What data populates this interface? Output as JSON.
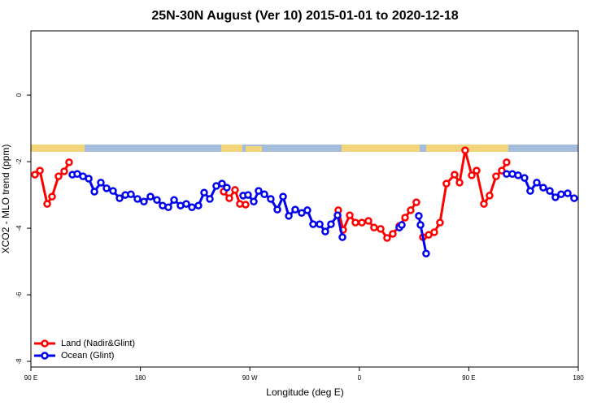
{
  "chart_data": {
    "type": "line",
    "title": "25N-30N August (Ver 10)   2015-01-01 to 2020-12-18",
    "xlabel": "Longitude (deg E)",
    "ylabel": "XCO2 - MLO trend (ppm)",
    "xlim": [
      90,
      540
    ],
    "ylim": [
      -8.17,
      1.93
    ],
    "xticks": [
      {
        "value": 90,
        "label": "90 E"
      },
      {
        "value": 180,
        "label": "180"
      },
      {
        "value": 270,
        "label": "90 W"
      },
      {
        "value": 360,
        "label": "0"
      },
      {
        "value": 450,
        "label": "90 E"
      },
      {
        "value": 540,
        "label": "180"
      }
    ],
    "yticks": [
      0,
      -2,
      -4,
      -6,
      -8
    ],
    "legend": "bottom-left",
    "series": [
      {
        "name": "Land (Nadir&Glint)",
        "color": "#ff0000",
        "x": [
          93.3,
          97.4,
          103.4,
          107.4,
          112.7,
          117.4,
          121.4,
          null,
          248.5,
          253.1,
          257.8,
          261.8,
          266.5,
          null,
          342.7,
          346.7,
          352.1,
          356.8,
          362.1,
          367.5,
          372.1,
          377.5,
          382.8,
          387.5,
          392.9,
          397.6,
          402.2,
          406.9,
          null,
          412.3,
          417.0,
          421.6,
          426.3,
          431.6,
          438.3,
          442.4,
          447.0,
          452.4,
          456.4,
          462.4,
          467.1,
          472.4,
          477.1,
          481.1
        ],
        "values": [
          -2.39,
          -2.27,
          -3.27,
          -3.05,
          -2.44,
          -2.29,
          -2.02,
          null,
          -2.9,
          -3.1,
          -2.85,
          -3.27,
          -3.29,
          null,
          -3.46,
          -4.05,
          -3.61,
          -3.83,
          -3.83,
          -3.78,
          -3.98,
          -4.02,
          -4.29,
          -4.17,
          -3.93,
          -3.68,
          -3.46,
          -3.22,
          null,
          -4.27,
          -4.2,
          -4.12,
          -3.83,
          -2.66,
          -2.39,
          -2.63,
          -1.66,
          -2.41,
          -2.27,
          -3.27,
          -3.02,
          -2.44,
          -2.27,
          -2.02
        ]
      },
      {
        "name": "Ocean (Glint)",
        "color": "#0000ee",
        "x": [
          124.1,
          128.1,
          132.8,
          137.5,
          142.2,
          147.5,
          152.2,
          157.5,
          162.9,
          167.6,
          172.2,
          177.6,
          182.9,
          188.3,
          193.6,
          198.3,
          203.0,
          207.7,
          213.0,
          217.7,
          222.4,
          227.7,
          232.4,
          237.1,
          242.4,
          247.1,
          251.1,
          null,
          264.5,
          268.5,
          273.2,
          277.2,
          281.9,
          287.2,
          292.6,
          297.3,
          302.0,
          307.3,
          312.6,
          317.3,
          322.0,
          327.4,
          332.0,
          336.7,
          342.1,
          346.1,
          null,
          392.9,
          394.9,
          null,
          408.9,
          410.3,
          414.9,
          null,
          481.1,
          485.8,
          490.5,
          495.8,
          500.5,
          505.9,
          511.2,
          516.6,
          521.2,
          525.9,
          531.3,
          536.6
        ],
        "values": [
          -2.39,
          -2.37,
          -2.44,
          -2.51,
          -2.9,
          -2.63,
          -2.8,
          -2.88,
          -3.1,
          -3.0,
          -2.98,
          -3.12,
          -3.2,
          -3.05,
          -3.15,
          -3.32,
          -3.37,
          -3.15,
          -3.32,
          -3.27,
          -3.37,
          -3.32,
          -2.93,
          -3.12,
          -2.73,
          -2.66,
          -2.78,
          null,
          -3.02,
          -3.0,
          -3.2,
          -2.88,
          -2.98,
          -3.12,
          -3.44,
          -3.05,
          -3.63,
          -3.44,
          -3.54,
          -3.46,
          -3.88,
          -3.88,
          -4.1,
          -3.88,
          -3.61,
          -4.27,
          null,
          -3.98,
          -3.9,
          null,
          -3.63,
          -3.9,
          -4.76,
          null,
          -2.37,
          -2.37,
          -2.41,
          -2.49,
          -2.88,
          -2.63,
          -2.78,
          -2.88,
          -3.07,
          -2.98,
          -2.95,
          -3.1
        ]
      }
    ]
  }
}
